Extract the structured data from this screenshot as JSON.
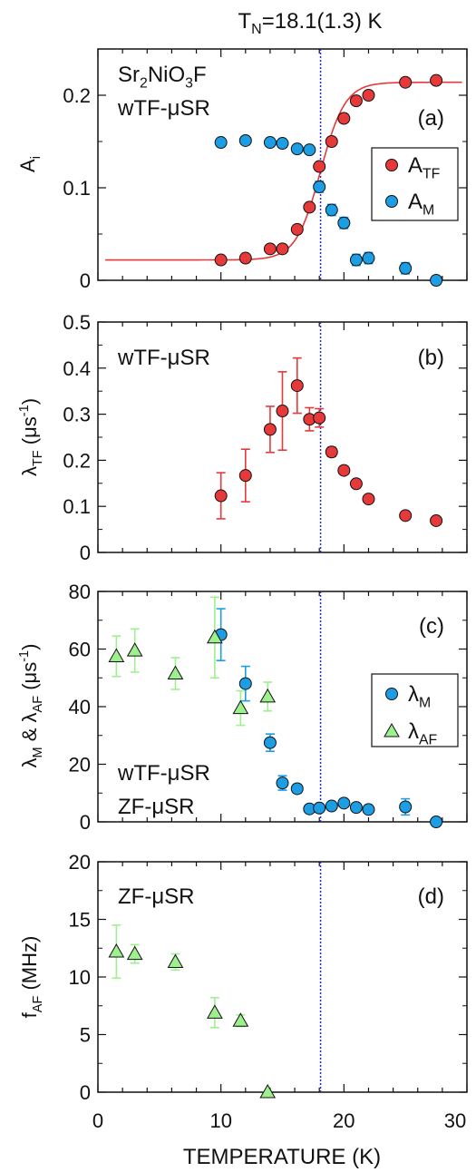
{
  "figure": {
    "header_main": "T",
    "header_sub": "N",
    "header_rest": "=18.1(1.3) K",
    "x_axis_label": "TEMPERATURE (K)",
    "x_ticks": [
      "0",
      "10",
      "20",
      "30"
    ],
    "tn_line_x": 18.1,
    "colors": {
      "red": "#e5393a",
      "blue": "#1c9de4",
      "green": "#9ef08e",
      "tn_line": "#2a2ad8",
      "fit": "#e5393a"
    }
  },
  "chart_data": [
    {
      "type": "scatter",
      "panel_label": "(a)",
      "ylabel_main": "A",
      "ylabel_sub": "i",
      "annotations": [
        "Sr2NiO3F",
        "wTF-μSR"
      ],
      "xlim": [
        0,
        30
      ],
      "ylim": [
        0,
        0.25
      ],
      "y_ticks": [
        "0",
        "0.1",
        "0.2"
      ],
      "legend": [
        {
          "name": "A",
          "sub": "TF",
          "color": "#e5393a",
          "marker": "circle"
        },
        {
          "name": "A",
          "sub": "M",
          "color": "#1c9de4",
          "marker": "circle"
        }
      ],
      "series": [
        {
          "name": "ATF",
          "color": "#e5393a",
          "marker": "circle",
          "x": [
            10,
            12,
            14,
            15,
            16.2,
            17.2,
            18,
            19,
            20,
            21,
            22,
            25,
            27.5
          ],
          "y": [
            0.022,
            0.024,
            0.034,
            0.034,
            0.055,
            0.079,
            0.123,
            0.15,
            0.175,
            0.194,
            0.2,
            0.214,
            0.216
          ],
          "err": [
            0.003,
            0.003,
            0.003,
            0.003,
            0.003,
            0.003,
            0.003,
            0.003,
            0.003,
            0.003,
            0.003,
            0.003,
            0.003
          ]
        },
        {
          "name": "AM",
          "color": "#1c9de4",
          "marker": "circle",
          "x": [
            10,
            12,
            14,
            15,
            16.2,
            17.2,
            18,
            19,
            20,
            21,
            22,
            25,
            27.5
          ],
          "y": [
            0.149,
            0.151,
            0.149,
            0.148,
            0.142,
            0.141,
            0.101,
            0.076,
            0.062,
            0.022,
            0.024,
            0.013,
            0.0
          ],
          "err": [
            0.003,
            0.003,
            0.003,
            0.003,
            0.003,
            0.003,
            0.006,
            0.006,
            0.006,
            0.006,
            0.006,
            0.006,
            0.003
          ]
        }
      ],
      "fit_curve": {
        "type": "sigmoid",
        "low": 0.022,
        "high": 0.214,
        "center": 18.1,
        "width": 1.0
      }
    },
    {
      "type": "scatter",
      "panel_label": "(b)",
      "ylabel_main": "λ",
      "ylabel_sub": "TF",
      "ylabel_rest": " (μs",
      "ylabel_sup": "-1",
      "ylabel_end": ")",
      "annotations": [
        "wTF-μSR"
      ],
      "xlim": [
        0,
        30
      ],
      "ylim": [
        0,
        0.5
      ],
      "y_ticks": [
        "0",
        "0.1",
        "0.2",
        "0.3",
        "0.4",
        "0.5"
      ],
      "series": [
        {
          "name": "λTF",
          "color": "#e5393a",
          "marker": "circle",
          "x": [
            10,
            12,
            14,
            15,
            16.2,
            17.2,
            18,
            19,
            20,
            21,
            22,
            25,
            27.5
          ],
          "y": [
            0.123,
            0.167,
            0.267,
            0.307,
            0.362,
            0.289,
            0.292,
            0.218,
            0.178,
            0.149,
            0.116,
            0.08,
            0.069
          ],
          "err": [
            0.05,
            0.057,
            0.05,
            0.085,
            0.06,
            0.025,
            0.02,
            0.01,
            0.008,
            0.007,
            0.006,
            0.005,
            0.005
          ]
        }
      ]
    },
    {
      "type": "scatter",
      "panel_label": "(c)",
      "ylabel_main": "λ",
      "ylabel_sub": "M",
      "ylabel_mid": " & λ",
      "ylabel_sub2": "AF",
      "ylabel_rest": " (μs",
      "ylabel_sup": "-1",
      "ylabel_end": ")",
      "annotations": [
        "wTF-μSR",
        "ZF-μSR"
      ],
      "xlim": [
        0,
        30
      ],
      "ylim": [
        0,
        80
      ],
      "y_ticks": [
        "0",
        "20",
        "40",
        "60",
        "80"
      ],
      "legend": [
        {
          "name": "λ",
          "sub": "M",
          "color": "#1c9de4",
          "marker": "circle"
        },
        {
          "name": "λ",
          "sub": "AF",
          "color": "#9ef08e",
          "marker": "triangle"
        }
      ],
      "series": [
        {
          "name": "λM",
          "color": "#1c9de4",
          "marker": "circle",
          "x": [
            10,
            12,
            14,
            15,
            16.2,
            17.2,
            18,
            19,
            20,
            21,
            22,
            25,
            27.5
          ],
          "y": [
            65,
            48,
            27.5,
            13.5,
            11.5,
            4.5,
            4.8,
            5.5,
            6.5,
            5,
            4.3,
            5.2,
            0
          ],
          "err": [
            9,
            6,
            3,
            2.5,
            1.5,
            1.2,
            1.2,
            1.2,
            1.2,
            1.2,
            1.2,
            2.8,
            0.5
          ]
        },
        {
          "name": "λAF",
          "color": "#9ef08e",
          "marker": "triangle",
          "x": [
            1.5,
            3,
            6.3,
            9.5,
            11.6,
            13.8
          ],
          "y": [
            57.5,
            59.5,
            51.5,
            64,
            39.5,
            43.5
          ],
          "err": [
            7,
            7.5,
            5.5,
            14,
            6,
            5
          ]
        }
      ]
    },
    {
      "type": "scatter",
      "panel_label": "(d)",
      "ylabel_main": "f",
      "ylabel_sub": "AF",
      "ylabel_rest": " (MHz)",
      "annotations": [
        "ZF-μSR"
      ],
      "xlim": [
        0,
        30
      ],
      "ylim": [
        0,
        20
      ],
      "y_ticks": [
        "0",
        "5",
        "10",
        "15",
        "20"
      ],
      "series": [
        {
          "name": "fAF",
          "color": "#9ef08e",
          "marker": "triangle",
          "x": [
            1.5,
            3,
            6.3,
            9.5,
            11.6,
            13.8
          ],
          "y": [
            12.2,
            12,
            11.3,
            6.9,
            6.2,
            0
          ],
          "err": [
            2.3,
            0.8,
            0.7,
            1.3,
            0.5,
            0
          ]
        }
      ]
    }
  ]
}
